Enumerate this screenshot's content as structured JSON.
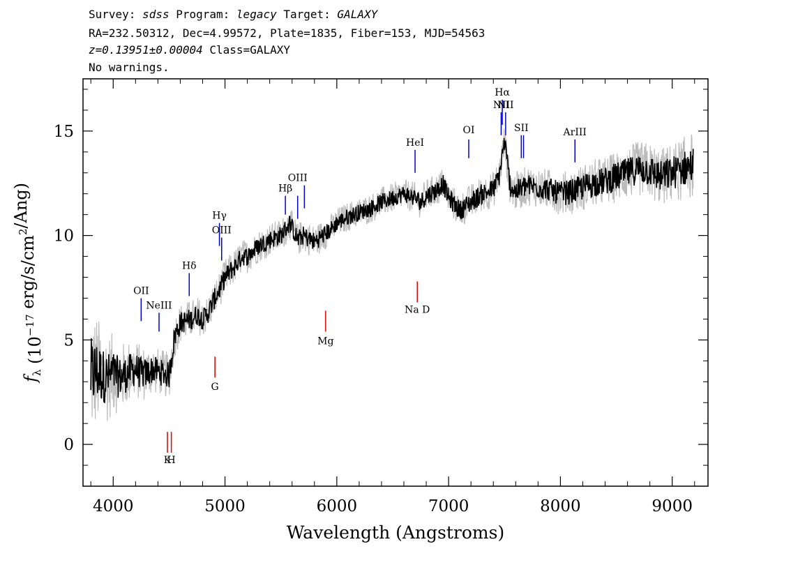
{
  "header": {
    "line1": {
      "survey_label": "Survey: ",
      "survey": "sdss",
      "program_label": " Program: ",
      "program": "legacy",
      "target_label": " Target: ",
      "target": "GALAXY"
    },
    "line2": "RA=232.50312, Dec=4.99572, Plate=1835, Fiber=153, MJD=54563",
    "line3": {
      "redshift": "z=0.13951±0.00004",
      "class_text": " Class=GALAXY"
    },
    "line4": "No warnings."
  },
  "chart_data": {
    "type": "line",
    "xlabel": "Wavelength (Angstroms)",
    "ylabel": "f_λ (10^-17 erg/s/cm^2/Ang)",
    "xlim": [
      3730,
      9320
    ],
    "ylim": [
      -2,
      17.5
    ],
    "xticks": [
      4000,
      5000,
      6000,
      7000,
      8000,
      9000
    ],
    "yticks": [
      0,
      5,
      10,
      15
    ],
    "colors": {
      "flux": "#000000",
      "error": "#bbbbbb",
      "emission": "#0000cc",
      "absorption": "#dd0000"
    },
    "series": [
      {
        "role": "flux",
        "x": [
          3800,
          3850,
          3900,
          3950,
          4000,
          4050,
          4100,
          4150,
          4200,
          4250,
          4300,
          4350,
          4400,
          4450,
          4500,
          4550,
          4600,
          4650,
          4700,
          4750,
          4800,
          4850,
          4900,
          4950,
          5000,
          5050,
          5100,
          5150,
          5200,
          5300,
          5400,
          5500,
          5580,
          5650,
          5700,
          5800,
          5900,
          5950,
          6000,
          6100,
          6200,
          6300,
          6400,
          6500,
          6600,
          6700,
          6750,
          6800,
          6900,
          6950,
          7000,
          7100,
          7200,
          7300,
          7400,
          7450,
          7500,
          7550,
          7600,
          7700,
          7800,
          7900,
          8000,
          8100,
          8200,
          8300,
          8400,
          8500,
          8600,
          8700,
          8800,
          8900,
          9000,
          9100,
          9190
        ],
        "y": [
          3.3,
          3.5,
          3.3,
          3.2,
          3.4,
          3.2,
          3.3,
          3.5,
          3.6,
          3.4,
          3.4,
          3.6,
          3.5,
          3.4,
          3.3,
          5.2,
          5.8,
          5.9,
          6.0,
          6.2,
          6.0,
          6.3,
          6.9,
          7.4,
          8.0,
          8.3,
          8.6,
          9.0,
          9.0,
          9.5,
          9.8,
          10.0,
          10.6,
          9.8,
          10.0,
          9.7,
          10.1,
          10.3,
          10.6,
          10.9,
          11.1,
          11.3,
          11.6,
          11.8,
          12.0,
          11.8,
          11.6,
          11.9,
          12.2,
          12.5,
          11.8,
          11.2,
          11.6,
          12.0,
          12.2,
          12.8,
          14.5,
          12.4,
          12.1,
          12.4,
          12.3,
          12.2,
          12.0,
          12.1,
          12.3,
          12.5,
          12.6,
          12.8,
          13.0,
          13.2,
          13.1,
          12.8,
          13.0,
          13.2,
          13.4
        ]
      },
      {
        "role": "error",
        "x": [
          3800,
          3900,
          4000,
          4100,
          4200,
          4300,
          4400,
          4500,
          4600,
          4800,
          5000,
          5200,
          5400,
          5600,
          5800,
          6000,
          6200,
          6400,
          6600,
          6800,
          7000,
          7200,
          7400,
          7600,
          7800,
          8000,
          8200,
          8400,
          8600,
          8800,
          9000,
          9190
        ],
        "y": [
          2.0,
          1.5,
          1.2,
          1.0,
          0.9,
          0.8,
          0.7,
          0.7,
          0.6,
          0.55,
          0.55,
          0.5,
          0.5,
          0.5,
          0.5,
          0.45,
          0.45,
          0.45,
          0.45,
          0.5,
          0.5,
          0.55,
          0.55,
          0.6,
          0.6,
          0.65,
          0.7,
          0.75,
          0.8,
          0.85,
          0.9,
          1.0
        ]
      }
    ],
    "emission_lines": [
      {
        "label": "OII",
        "x": 4250,
        "y1": 5.9,
        "y2": 7.0,
        "text_y": 7.2
      },
      {
        "label": "NeIII",
        "x": 4410,
        "y1": 5.4,
        "y2": 6.3,
        "text_y": 6.5
      },
      {
        "label": "Hδ",
        "x": 4680,
        "y1": 7.1,
        "y2": 8.2,
        "text_y": 8.4
      },
      {
        "label": "Hγ",
        "x": 4950,
        "y1": 9.5,
        "y2": 10.6,
        "text_y": 10.8
      },
      {
        "label": "OIII",
        "x": 4970,
        "y1": 8.8,
        "y2": 9.9,
        "text_y": 10.1
      },
      {
        "label": "Hβ",
        "x": 5540,
        "y1": 11.0,
        "y2": 11.9,
        "text_y": 12.1
      },
      {
        "label": "OIII",
        "x": 5650,
        "y1": 10.8,
        "y2": 11.9,
        "text_y": 12.6
      },
      {
        "label": "OIII-2",
        "x": 5710,
        "y1": 11.3,
        "y2": 12.4,
        "text_y": null
      },
      {
        "label": "HeI",
        "x": 6700,
        "y1": 13.0,
        "y2": 14.1,
        "text_y": 14.3
      },
      {
        "label": "OI",
        "x": 7180,
        "y1": 13.7,
        "y2": 14.6,
        "text_y": 14.9
      },
      {
        "label": "NII",
        "x": 7470,
        "y1": 14.8,
        "y2": 15.9,
        "text_y": 16.1
      },
      {
        "label": "Hα",
        "x": 7480,
        "y1": 15.3,
        "y2": 16.5,
        "text_y": 16.7
      },
      {
        "label": "NII",
        "x": 7510,
        "y1": 14.8,
        "y2": 15.9,
        "text_y": 16.1
      },
      {
        "label": "SII",
        "x": 7650,
        "y1": 13.7,
        "y2": 14.8,
        "text_y": 15.0
      },
      {
        "label": "SII-2",
        "x": 7670,
        "y1": 13.7,
        "y2": 14.8,
        "text_y": null
      },
      {
        "label": "ArIII",
        "x": 8130,
        "y1": 13.5,
        "y2": 14.6,
        "text_y": 14.8
      }
    ],
    "absorption_lines": [
      {
        "label": "K",
        "x": 4485,
        "y1": -0.4,
        "y2": 0.6,
        "text_y": -0.9
      },
      {
        "label": "H",
        "x": 4520,
        "y1": -0.4,
        "y2": 0.6,
        "text_y": -0.9
      },
      {
        "label": "G",
        "x": 4910,
        "y1": 3.2,
        "y2": 4.2,
        "text_y": 2.6
      },
      {
        "label": "Mg",
        "x": 5900,
        "y1": 5.4,
        "y2": 6.4,
        "text_y": 4.8
      },
      {
        "label": "Na D",
        "x": 6720,
        "y1": 6.8,
        "y2": 7.8,
        "text_y": 6.3
      }
    ]
  }
}
